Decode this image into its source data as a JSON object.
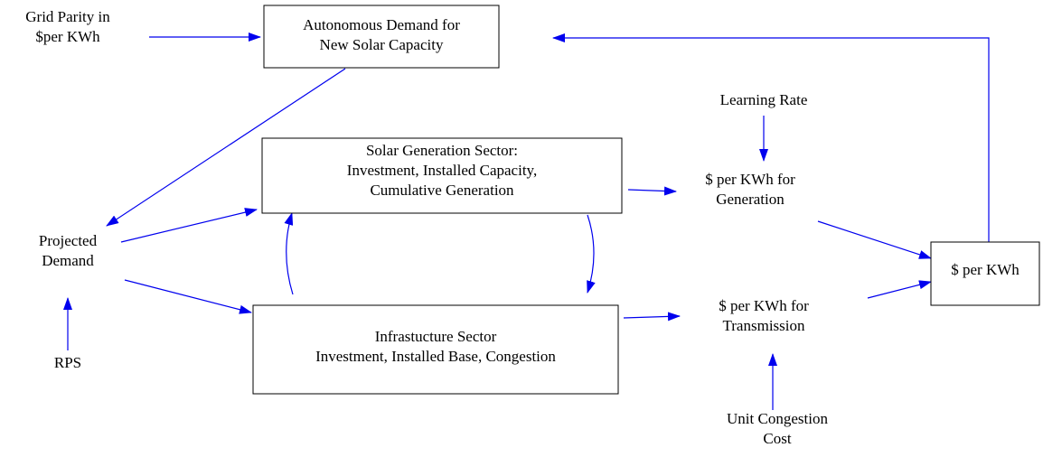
{
  "nodes": [
    {
      "lines": [
        "Grid Parity in",
        "$per KWh"
      ]
    },
    {
      "lines": [
        "Autonomous Demand for",
        "New Solar Capacity"
      ]
    },
    {
      "lines": [
        "Learning Rate"
      ]
    },
    {
      "lines": [
        "Solar Generation Sector:",
        "Investment,  Installed Capacity,",
        "Cumulative Generation"
      ]
    },
    {
      "lines": [
        "$ per KWh for",
        "Generation"
      ]
    },
    {
      "lines": [
        "Projected",
        "Demand"
      ]
    },
    {
      "lines": [
        "$ per KWh"
      ]
    },
    {
      "lines": [
        "Infrastucture Sector",
        "Investment, Installed Base, Congestion"
      ]
    },
    {
      "lines": [
        "$ per KWh for",
        "Transmission"
      ]
    },
    {
      "lines": [
        "RPS"
      ]
    },
    {
      "lines": [
        "Unit Congestion",
        "Cost"
      ]
    }
  ]
}
